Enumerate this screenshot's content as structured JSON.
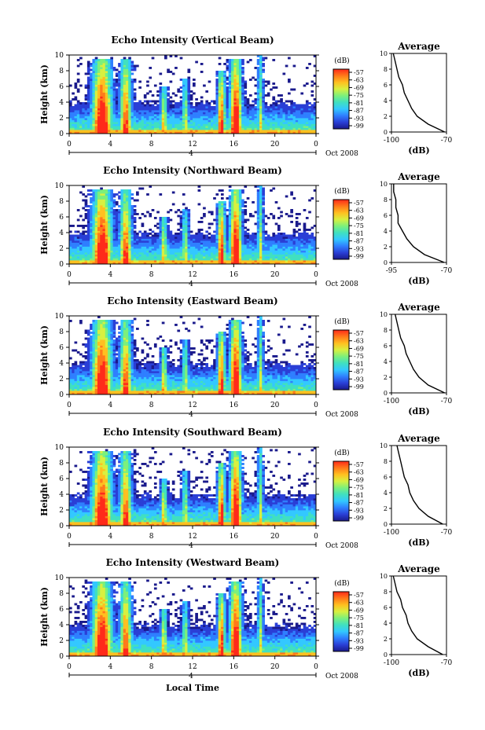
{
  "figure": {
    "xlabel": "Local Time",
    "date_label": "Oct 2008",
    "day_label": "4",
    "colorbar_unit": "(dB)",
    "colorbar_ticks": [
      "-57",
      "-63",
      "-69",
      "-75",
      "-81",
      "-87",
      "-93",
      "-99"
    ],
    "colormap": [
      "#1a1a8c",
      "#2a3fd6",
      "#2f7fff",
      "#33c8ff",
      "#40e0c0",
      "#7cf07c",
      "#d8f040",
      "#ffc020",
      "#ff7a1a",
      "#ff2a1a"
    ]
  },
  "chart_data": [
    {
      "type": "heatmap",
      "title": "Echo Intensity (Vertical Beam)",
      "xlabel": "",
      "ylabel": "Height (km)",
      "xlim": [
        0,
        24
      ],
      "ylim": [
        0,
        10
      ],
      "xticks": [
        "0",
        "4",
        "8",
        "12",
        "16",
        "20",
        "0"
      ],
      "yticks": [
        "0",
        "2",
        "4",
        "6",
        "8",
        "10"
      ],
      "zlim": [
        -99,
        -57
      ],
      "z_unit": "dB",
      "profile": {
        "title": "Average",
        "xlabel": "(dB)",
        "xlim": [
          -100,
          -70
        ],
        "xticks": [
          "-100",
          "-70"
        ],
        "height": [
          0,
          1,
          2,
          3,
          4,
          5,
          6,
          7,
          8,
          9,
          10
        ],
        "value": [
          -71,
          -80,
          -86,
          -89,
          -91,
          -93,
          -94,
          -96,
          -97,
          -98,
          -99
        ]
      }
    },
    {
      "type": "heatmap",
      "title": "Echo Intensity (Northward Beam)",
      "xlabel": "",
      "ylabel": "Height (km)",
      "xlim": [
        0,
        24
      ],
      "ylim": [
        0,
        10
      ],
      "xticks": [
        "0",
        "4",
        "8",
        "12",
        "16",
        "20",
        "0"
      ],
      "yticks": [
        "0",
        "2",
        "4",
        "6",
        "8",
        "10"
      ],
      "zlim": [
        -99,
        -57
      ],
      "z_unit": "dB",
      "profile": {
        "title": "Average",
        "xlabel": "(dB)",
        "xlim": [
          -95,
          -70
        ],
        "xticks": [
          "-95",
          "-70"
        ],
        "height": [
          0,
          1,
          2,
          3,
          4,
          5,
          6,
          7,
          8,
          9,
          10
        ],
        "value": [
          -71,
          -80,
          -85,
          -88,
          -90,
          -92,
          -92,
          -93,
          -93,
          -94,
          -94
        ]
      }
    },
    {
      "type": "heatmap",
      "title": "Echo Intensity (Eastward Beam)",
      "xlabel": "",
      "ylabel": "Height (km)",
      "xlim": [
        0,
        24
      ],
      "ylim": [
        0,
        10
      ],
      "xticks": [
        "0",
        "4",
        "8",
        "12",
        "16",
        "20",
        "0"
      ],
      "yticks": [
        "0",
        "2",
        "4",
        "6",
        "8",
        "10"
      ],
      "zlim": [
        -99,
        -57
      ],
      "z_unit": "dB",
      "profile": {
        "title": "Average",
        "xlabel": "(dB)",
        "xlim": [
          -100,
          -70
        ],
        "xticks": [
          "-100",
          "-70"
        ],
        "height": [
          0,
          1,
          2,
          3,
          4,
          5,
          6,
          7,
          8,
          9,
          10
        ],
        "value": [
          -71,
          -80,
          -85,
          -88,
          -90,
          -92,
          -93,
          -95,
          -96,
          -97,
          -98
        ]
      }
    },
    {
      "type": "heatmap",
      "title": "Echo Intensity (Southward Beam)",
      "xlabel": "",
      "ylabel": "Height (km)",
      "xlim": [
        0,
        24
      ],
      "ylim": [
        0,
        10
      ],
      "xticks": [
        "0",
        "4",
        "8",
        "12",
        "16",
        "20",
        "0"
      ],
      "yticks": [
        "0",
        "2",
        "4",
        "6",
        "8",
        "10"
      ],
      "zlim": [
        -99,
        -57
      ],
      "z_unit": "dB",
      "profile": {
        "title": "Average",
        "xlabel": "(dB)",
        "xlim": [
          -100,
          -70
        ],
        "xticks": [
          "-100",
          "-70"
        ],
        "height": [
          0,
          1,
          2,
          3,
          4,
          5,
          6,
          7,
          8,
          9,
          10
        ],
        "value": [
          -72,
          -80,
          -85,
          -88,
          -90,
          -91,
          -93,
          -94,
          -95,
          -96,
          -97
        ]
      }
    },
    {
      "type": "heatmap",
      "title": "Echo Intensity (Westward Beam)",
      "xlabel": "Local Time",
      "ylabel": "Height (km)",
      "xlim": [
        0,
        24
      ],
      "ylim": [
        0,
        10
      ],
      "xticks": [
        "0",
        "4",
        "8",
        "12",
        "16",
        "20",
        "0"
      ],
      "yticks": [
        "0",
        "2",
        "4",
        "6",
        "8",
        "10"
      ],
      "zlim": [
        -99,
        -57
      ],
      "z_unit": "dB",
      "profile": {
        "title": "Average",
        "xlabel": "(dB)",
        "xlim": [
          -100,
          -70
        ],
        "xticks": [
          "-100",
          "-70"
        ],
        "height": [
          0,
          1,
          2,
          3,
          4,
          5,
          6,
          7,
          8,
          9,
          10
        ],
        "value": [
          -72,
          -80,
          -86,
          -89,
          -91,
          -92,
          -94,
          -95,
          -97,
          -98,
          -99
        ]
      }
    }
  ]
}
